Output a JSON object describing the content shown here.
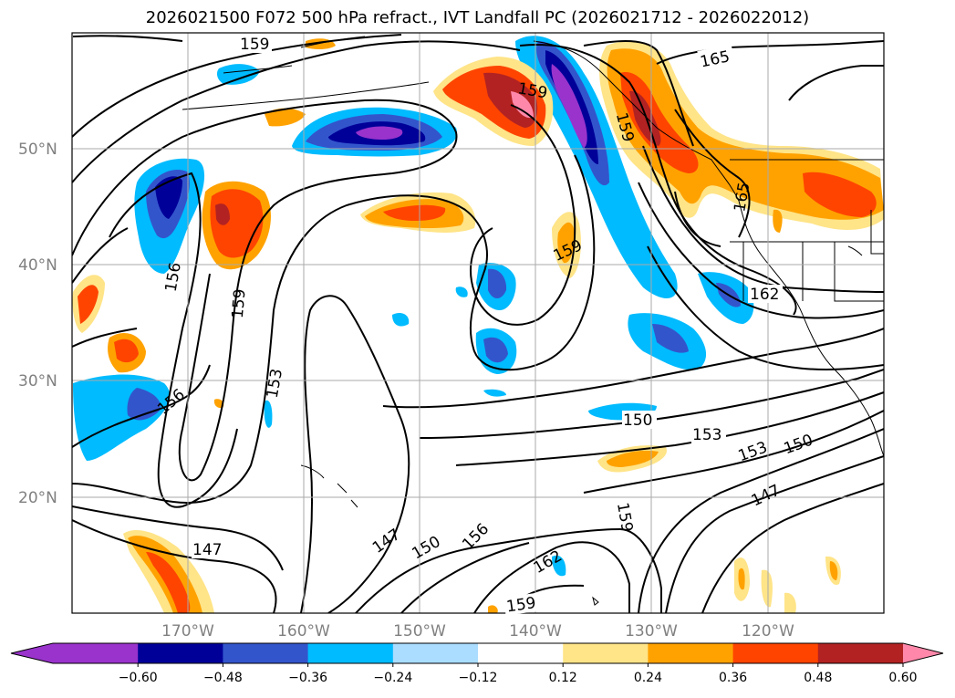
{
  "title": "2026021500 F072 500 hPa refract., IVT Landfall PC (2026021712 - 2026022012)",
  "lat_labels": [
    "50°N",
    "40°N",
    "30°N",
    "20°N"
  ],
  "lon_labels": [
    "170°W",
    "160°W",
    "150°W",
    "140°W",
    "130°W",
    "120°W"
  ],
  "contour_labels": [
    "159",
    "165",
    "159",
    "159",
    "165",
    "159",
    "156",
    "159",
    "162",
    "153",
    "156",
    "150",
    "153",
    "153",
    "150",
    "147",
    "159",
    "147",
    "147",
    "150",
    "156",
    "162",
    "159"
  ],
  "colorbar": {
    "ticks": [
      "−0.60",
      "−0.48",
      "−0.36",
      "−0.24",
      "−0.12",
      "0.12",
      "0.24",
      "0.36",
      "0.48",
      "0.60"
    ],
    "colors": [
      "#9933cc",
      "#000099",
      "#3355cc",
      "#00bbff",
      "#aaddff",
      "#ffffff",
      "#ffe488",
      "#ffa200",
      "#ff4400",
      "#b22222",
      "#ff88aa"
    ]
  },
  "shading_colors": {
    "neg_extreme": "#9933cc",
    "neg_strong": "#000099",
    "neg_medium": "#3355cc",
    "neg_light": "#00bbff",
    "neg_faint": "#aaddff",
    "pos_faint": "#ffe488",
    "pos_light": "#ffa200",
    "pos_medium": "#ff4400",
    "pos_strong": "#b22222",
    "pos_extreme": "#ff88aa"
  }
}
